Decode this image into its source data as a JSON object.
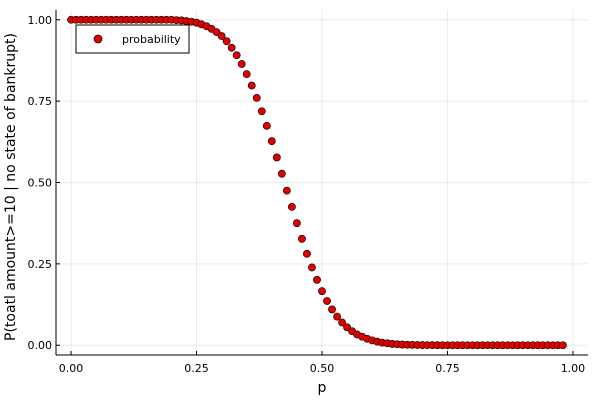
{
  "chart_data": {
    "type": "scatter",
    "xlabel": "p",
    "ylabel": "P(toatl amount>=10 | no state of bankrupt)",
    "xlim": [
      -0.03,
      1.03
    ],
    "ylim": [
      -0.03,
      1.03
    ],
    "xticks": [
      0.0,
      0.25,
      0.5,
      0.75,
      1.0
    ],
    "xtick_labels": [
      "0.00",
      "0.25",
      "0.50",
      "0.75",
      "1.00"
    ],
    "yticks": [
      0.0,
      0.25,
      0.5,
      0.75,
      1.0
    ],
    "ytick_labels": [
      "0.00",
      "0.25",
      "0.50",
      "0.75",
      "1.00"
    ],
    "grid": true,
    "legend_position": "top-left",
    "series": [
      {
        "name": "probability",
        "color": "#e00000",
        "x": [
          0.0,
          0.01,
          0.02,
          0.03,
          0.04,
          0.05,
          0.06,
          0.07,
          0.08,
          0.09,
          0.1,
          0.11,
          0.12,
          0.13,
          0.14,
          0.15,
          0.16,
          0.17,
          0.18,
          0.19,
          0.2,
          0.21,
          0.22,
          0.23,
          0.24,
          0.25,
          0.26,
          0.27,
          0.28,
          0.29,
          0.3,
          0.31,
          0.32,
          0.33,
          0.34,
          0.35,
          0.36,
          0.37,
          0.38,
          0.39,
          0.4,
          0.41,
          0.42,
          0.43,
          0.44,
          0.45,
          0.46,
          0.47,
          0.48,
          0.49,
          0.5,
          0.51,
          0.52,
          0.53,
          0.54,
          0.55,
          0.56,
          0.57,
          0.58,
          0.59,
          0.6,
          0.61,
          0.62,
          0.63,
          0.64,
          0.65,
          0.66,
          0.67,
          0.68,
          0.69,
          0.7,
          0.71,
          0.72,
          0.73,
          0.74,
          0.75,
          0.76,
          0.77,
          0.78,
          0.79,
          0.8,
          0.81,
          0.82,
          0.83,
          0.84,
          0.85,
          0.86,
          0.87,
          0.88,
          0.89,
          0.9,
          0.91,
          0.92,
          0.93,
          0.94,
          0.95,
          0.96,
          0.97,
          0.98
        ],
        "y": [
          1.0,
          1.0,
          1.0,
          1.0,
          1.0,
          1.0,
          1.0,
          1.0,
          1.0,
          1.0,
          1.0,
          1.0,
          1.0,
          1.0,
          1.0,
          1.0,
          1.0,
          1.0,
          1.0,
          1.0,
          1.0,
          0.999,
          0.998,
          0.996,
          0.994,
          0.991,
          0.986,
          0.98,
          0.972,
          0.962,
          0.95,
          0.934,
          0.914,
          0.891,
          0.864,
          0.833,
          0.798,
          0.76,
          0.719,
          0.674,
          0.627,
          0.577,
          0.527,
          0.475,
          0.425,
          0.375,
          0.327,
          0.281,
          0.239,
          0.201,
          0.166,
          0.136,
          0.11,
          0.088,
          0.07,
          0.055,
          0.043,
          0.033,
          0.026,
          0.02,
          0.015,
          0.011,
          0.008,
          0.006,
          0.004,
          0.003,
          0.002,
          0.0015,
          0.001,
          0.0007,
          0.0005,
          0.0003,
          0.0002,
          0.0001,
          0.0,
          0.0,
          0.0,
          0.0,
          0.0,
          0.0,
          0.0,
          0.0,
          0.0,
          0.0,
          0.0,
          0.0,
          0.0,
          0.0,
          0.0,
          0.0,
          0.0,
          0.0,
          0.0,
          0.0,
          0.0,
          0.0,
          0.0,
          0.0,
          0.0
        ]
      }
    ]
  }
}
